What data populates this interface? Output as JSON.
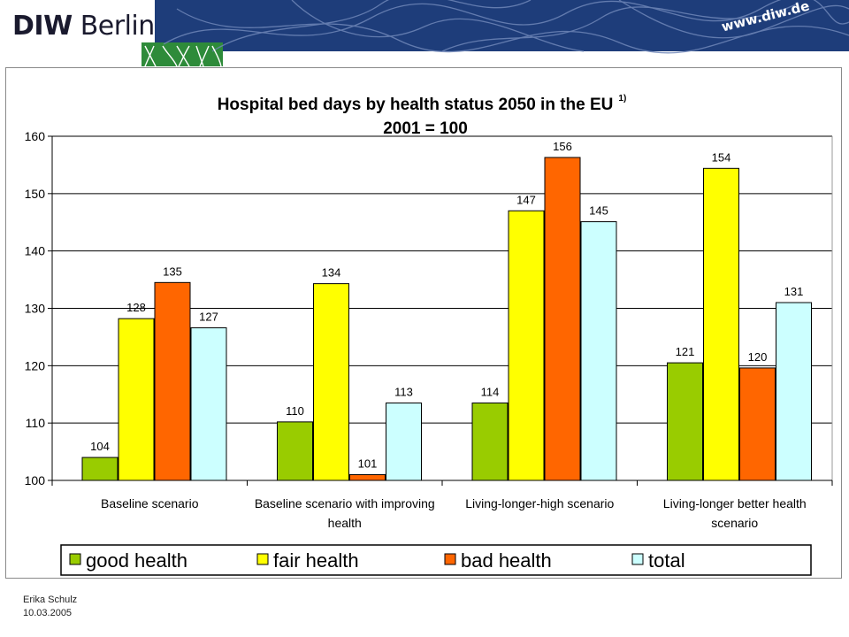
{
  "header": {
    "logo_bold": "DIW",
    "logo_regular": "Berlin",
    "url": "www.diw.de"
  },
  "chart_data": {
    "type": "bar",
    "title": "Hospital bed days by health status 2050 in the EU",
    "title_superscript": "1)",
    "subtitle": "2001 = 100",
    "categories": [
      [
        "Baseline scenario"
      ],
      [
        "Baseline scenario with improving",
        "health"
      ],
      [
        "Living-longer-high scenario"
      ],
      [
        "Living-longer better health",
        "scenario"
      ]
    ],
    "series": [
      {
        "name": "good health",
        "color": "#99cc00",
        "values": [
          104,
          110,
          114,
          121
        ],
        "plot_values": [
          104.0,
          110.2,
          113.5,
          120.5
        ]
      },
      {
        "name": "fair health",
        "color": "#ffff00",
        "values": [
          128,
          134,
          147,
          154
        ],
        "plot_values": [
          128.2,
          134.3,
          147.0,
          154.4
        ]
      },
      {
        "name": "bad health",
        "color": "#ff6600",
        "values": [
          135,
          101,
          156,
          120
        ],
        "plot_values": [
          134.5,
          101.0,
          156.3,
          119.6
        ]
      },
      {
        "name": "total",
        "color": "#ccffff",
        "values": [
          127,
          113,
          145,
          131
        ],
        "plot_values": [
          126.6,
          113.5,
          145.1,
          131.0
        ]
      }
    ],
    "ylim": [
      100,
      160
    ],
    "yticks": [
      100,
      110,
      120,
      130,
      140,
      150,
      160
    ],
    "grid": true,
    "legend_position": "bottom"
  },
  "footer": {
    "author": "Erika Schulz",
    "date": "10.03.2005"
  }
}
